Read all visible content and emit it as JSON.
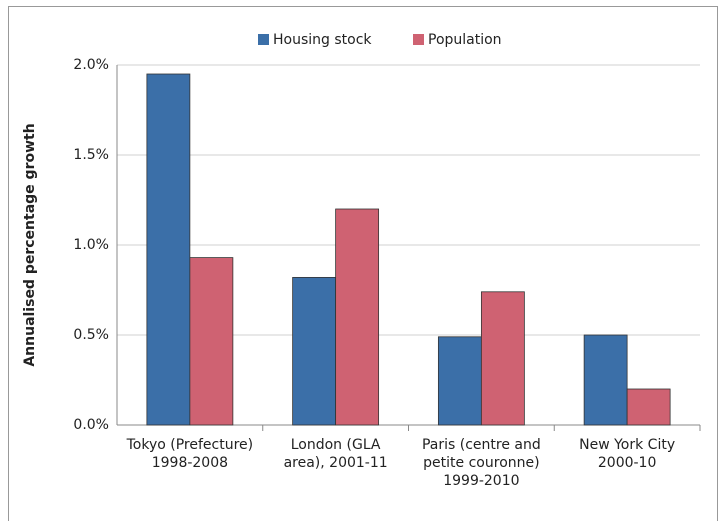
{
  "chart_data": {
    "type": "bar",
    "y_label": "Annualised percentage growth",
    "categories": [
      [
        "Tokyo (Prefecture)",
        "1998-2008"
      ],
      [
        "London (GLA",
        "area), 2001-11"
      ],
      [
        "Paris (centre and",
        "petite couronne)",
        "1999-2010"
      ],
      [
        "New York City",
        "2000-10"
      ]
    ],
    "series": [
      {
        "name": "Housing stock",
        "color": "#3b6fa8",
        "values": [
          1.95,
          0.82,
          0.49,
          0.5
        ]
      },
      {
        "name": "Population",
        "color": "#cf6272",
        "values": [
          0.93,
          1.2,
          0.74,
          0.2
        ]
      }
    ],
    "ylim": [
      0,
      2
    ],
    "yticks": [
      {
        "value": 0,
        "label": "0.0%"
      },
      {
        "value": 0.5,
        "label": "0.5%"
      },
      {
        "value": 1,
        "label": "1.0%"
      },
      {
        "value": 1.5,
        "label": "1.5%"
      },
      {
        "value": 2,
        "label": "2.0%"
      }
    ],
    "grid": true
  }
}
